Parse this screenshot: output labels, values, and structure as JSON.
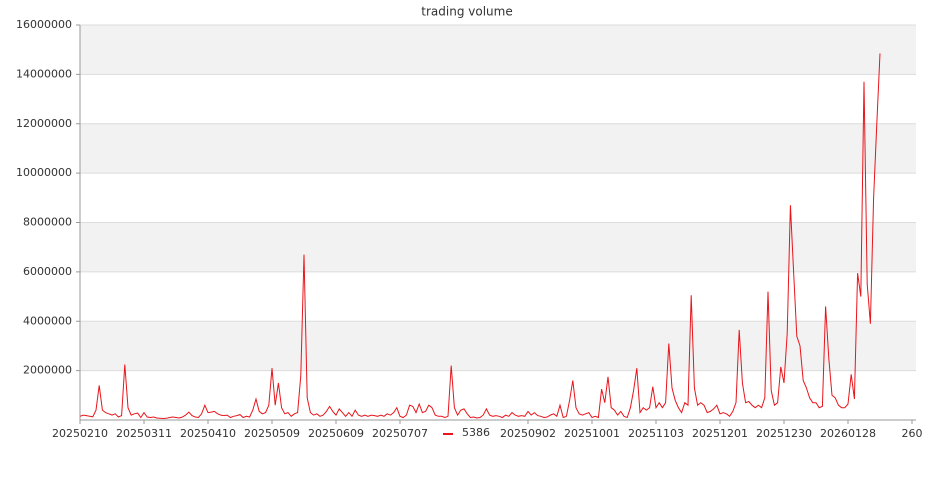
{
  "chart_data": {
    "type": "line",
    "title": "trading volume",
    "categories": [
      "20250210",
      null,
      null,
      null,
      null,
      null,
      null,
      null,
      null,
      null,
      null,
      null,
      null,
      null,
      null,
      null,
      null,
      null,
      null,
      null,
      "20250311",
      null,
      null,
      null,
      null,
      null,
      null,
      null,
      null,
      null,
      null,
      null,
      null,
      null,
      null,
      null,
      null,
      null,
      null,
      null,
      "20250410",
      null,
      null,
      null,
      null,
      null,
      null,
      null,
      null,
      null,
      null,
      null,
      null,
      null,
      null,
      null,
      null,
      null,
      null,
      null,
      "20250509",
      null,
      null,
      null,
      null,
      null,
      null,
      null,
      null,
      null,
      null,
      null,
      null,
      null,
      null,
      null,
      null,
      null,
      null,
      null,
      "20250609",
      null,
      null,
      null,
      null,
      null,
      null,
      null,
      null,
      null,
      null,
      null,
      null,
      null,
      null,
      null,
      null,
      null,
      null,
      null,
      "20250707",
      null,
      null,
      null,
      null,
      null,
      null,
      null,
      null,
      null,
      null,
      null,
      null,
      null,
      null,
      null,
      null,
      null,
      null,
      null,
      null,
      null,
      null,
      null,
      null,
      null,
      null,
      null,
      null,
      null,
      null,
      null,
      null,
      null,
      null,
      null,
      null,
      null,
      null,
      null,
      "20250902",
      null,
      null,
      null,
      null,
      null,
      null,
      null,
      null,
      null,
      null,
      null,
      null,
      null,
      null,
      null,
      null,
      null,
      null,
      null,
      "20251001",
      null,
      null,
      null,
      null,
      null,
      null,
      null,
      null,
      null,
      null,
      null,
      null,
      null,
      null,
      null,
      null,
      null,
      null,
      null,
      "20251103",
      null,
      null,
      null,
      null,
      null,
      null,
      null,
      null,
      null,
      null,
      null,
      null,
      null,
      null,
      null,
      null,
      null,
      null,
      null,
      "20251201",
      null,
      null,
      null,
      null,
      null,
      null,
      null,
      null,
      null,
      null,
      null,
      null,
      null,
      null,
      null,
      null,
      null,
      null,
      null,
      "20251230",
      null,
      null,
      null,
      null,
      null,
      null,
      null,
      null,
      null,
      null,
      null,
      null,
      null,
      null,
      null,
      null,
      null,
      null,
      null,
      "20260128",
      null,
      null,
      null,
      null,
      null,
      null,
      null,
      null,
      null,
      null,
      null,
      null,
      null,
      null,
      null,
      null,
      null,
      null,
      null,
      "260"
    ],
    "series": [
      {
        "name": "5386",
        "color": "#e8151b",
        "values": [
          150000,
          200000,
          180000,
          150000,
          130000,
          400000,
          1400000,
          400000,
          300000,
          250000,
          200000,
          250000,
          120000,
          180000,
          2250000,
          500000,
          200000,
          250000,
          280000,
          100000,
          300000,
          120000,
          100000,
          120000,
          80000,
          70000,
          60000,
          70000,
          100000,
          120000,
          100000,
          80000,
          120000,
          200000,
          320000,
          180000,
          120000,
          100000,
          250000,
          600000,
          300000,
          320000,
          350000,
          250000,
          200000,
          180000,
          200000,
          100000,
          150000,
          180000,
          220000,
          100000,
          150000,
          120000,
          400000,
          850000,
          350000,
          250000,
          300000,
          600000,
          2100000,
          600000,
          1500000,
          500000,
          250000,
          300000,
          150000,
          250000,
          300000,
          1800000,
          6700000,
          900000,
          300000,
          200000,
          250000,
          150000,
          200000,
          350000,
          550000,
          350000,
          200000,
          450000,
          300000,
          150000,
          300000,
          150000,
          400000,
          200000,
          150000,
          200000,
          150000,
          200000,
          180000,
          150000,
          200000,
          150000,
          250000,
          200000,
          300000,
          500000,
          150000,
          100000,
          200000,
          600000,
          550000,
          300000,
          650000,
          300000,
          350000,
          600000,
          500000,
          200000,
          150000,
          150000,
          100000,
          150000,
          2200000,
          500000,
          200000,
          400000,
          450000,
          250000,
          100000,
          120000,
          80000,
          100000,
          200000,
          450000,
          200000,
          150000,
          180000,
          150000,
          100000,
          200000,
          150000,
          300000,
          200000,
          150000,
          180000,
          150000,
          350000,
          200000,
          300000,
          180000,
          150000,
          100000,
          120000,
          200000,
          250000,
          150000,
          600000,
          100000,
          150000,
          800000,
          1600000,
          500000,
          250000,
          200000,
          250000,
          300000,
          100000,
          150000,
          100000,
          1250000,
          700000,
          1750000,
          500000,
          400000,
          200000,
          350000,
          150000,
          100000,
          500000,
          1200000,
          2100000,
          300000,
          500000,
          400000,
          500000,
          1350000,
          500000,
          700000,
          500000,
          700000,
          3100000,
          1300000,
          800000,
          500000,
          300000,
          700000,
          600000,
          5050000,
          1300000,
          600000,
          700000,
          600000,
          300000,
          350000,
          450000,
          600000,
          250000,
          300000,
          250000,
          150000,
          350000,
          700000,
          3650000,
          1500000,
          700000,
          750000,
          600000,
          500000,
          600000,
          500000,
          900000,
          5200000,
          1200000,
          600000,
          700000,
          2150000,
          1500000,
          3500000,
          8700000,
          6000000,
          3400000,
          3000000,
          1600000,
          1300000,
          900000,
          700000,
          700000,
          500000,
          550000,
          4600000,
          2500000,
          1000000,
          900000,
          600000,
          500000,
          500000,
          650000,
          1850000,
          850000,
          5950000,
          5000000,
          13700000,
          5500000,
          3900000,
          9000000,
          12000000,
          14850000,
          null,
          null,
          null,
          null,
          null,
          null,
          null,
          null,
          null,
          null
        ]
      }
    ],
    "ylim": [
      0,
      16000000
    ],
    "yticks": [
      2000000,
      4000000,
      6000000,
      8000000,
      10000000,
      12000000,
      14000000,
      16000000
    ],
    "grid": true,
    "legend": "bottom"
  }
}
